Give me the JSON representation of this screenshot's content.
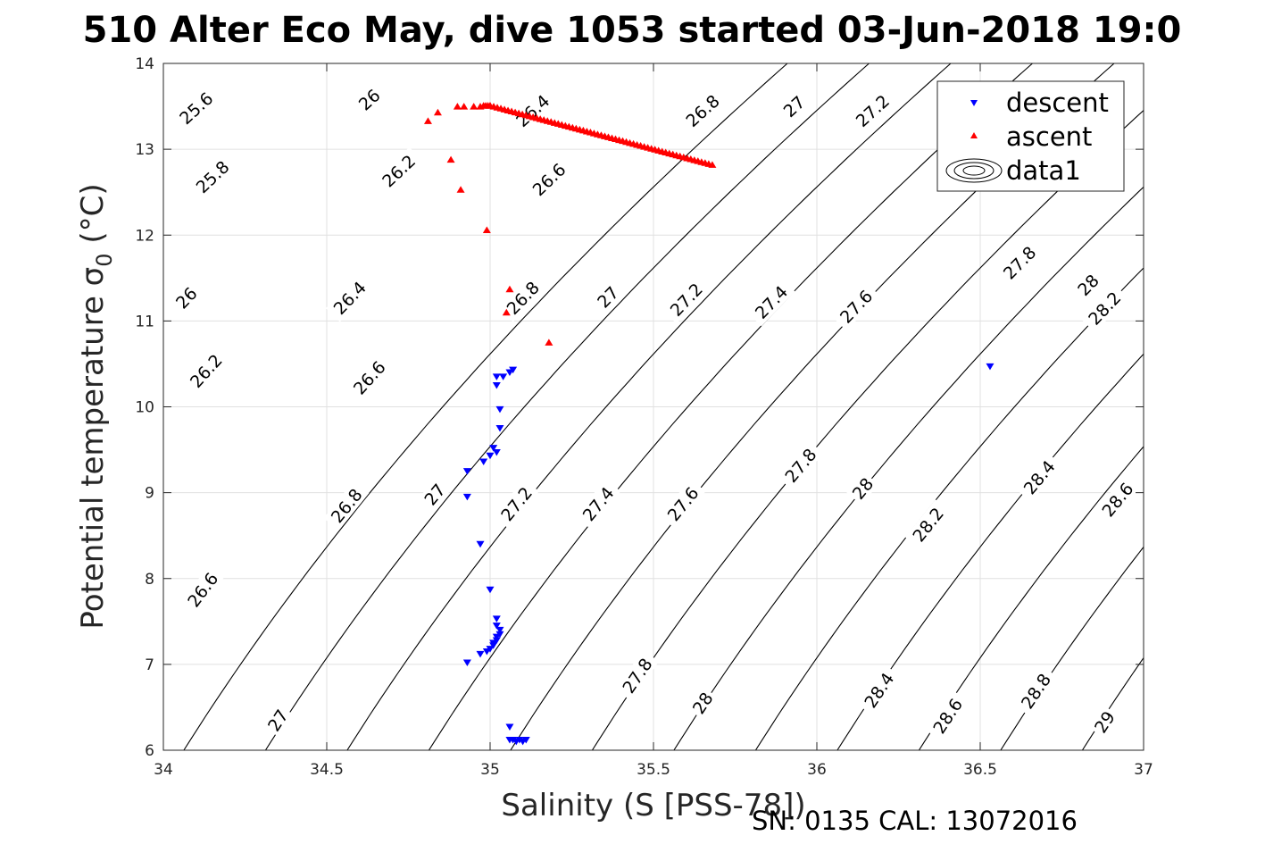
{
  "chart_data": {
    "type": "scatter",
    "title": "510 Alter Eco May, dive 1053 started 03-Jun-2018 19:0",
    "xlabel": "Salinity (S [PSS-78])",
    "ylabel": "Potential temperature σ",
    "ylabel_sub": "0",
    "ylabel_unit": " (°C)",
    "xlim": [
      34,
      37
    ],
    "ylim": [
      6,
      14
    ],
    "xticks": [
      34,
      34.5,
      35,
      35.5,
      36,
      36.5,
      37
    ],
    "xtick_labels": [
      "34",
      "34.5",
      "35",
      "35.5",
      "36",
      "36.5",
      "37"
    ],
    "yticks": [
      6,
      7,
      8,
      9,
      10,
      11,
      12,
      13,
      14
    ],
    "ytick_labels": [
      "6",
      "7",
      "8",
      "9",
      "10",
      "11",
      "12",
      "13",
      "14"
    ],
    "grid": true,
    "legend_position": "top-right",
    "footer": "SN: 0135  CAL: 13072016",
    "colors": {
      "descent": "#0000ff",
      "ascent": "#ff0000",
      "contour": "#000000",
      "grid": "#e0e0e0"
    },
    "series": [
      {
        "name": "descent",
        "marker": "triangle-down",
        "x": [
          35.02,
          35.04,
          35.06,
          35.07,
          35.02,
          35.03,
          35.03,
          35.01,
          35.02,
          35.0,
          34.98,
          34.93,
          34.93,
          34.97,
          35.0,
          35.02,
          35.02,
          35.03,
          35.03,
          35.02,
          35.02,
          35.01,
          35.01,
          35.0,
          34.99,
          34.97,
          34.93,
          35.06,
          35.06,
          35.07,
          35.08,
          35.09,
          35.1,
          35.11
        ],
        "y": [
          10.35,
          10.35,
          10.4,
          10.43,
          10.25,
          9.97,
          9.75,
          9.52,
          9.47,
          9.43,
          9.36,
          9.25,
          8.95,
          8.4,
          7.87,
          7.53,
          7.45,
          7.4,
          7.35,
          7.32,
          7.28,
          7.25,
          7.22,
          7.18,
          7.15,
          7.12,
          7.02,
          6.27,
          6.12,
          6.12,
          6.1,
          6.12,
          6.1,
          6.12
        ]
      },
      {
        "name": "descent",
        "marker": "triangle-down",
        "x": [
          36.53
        ],
        "y": [
          10.47
        ]
      },
      {
        "name": "ascent",
        "marker": "triangle-up",
        "scatter_x": [
          34.81,
          34.84,
          34.88,
          34.9,
          34.92,
          34.95,
          34.97,
          34.91,
          34.99,
          35.06,
          35.05,
          35.18
        ],
        "scatter_y": [
          13.33,
          13.43,
          12.88,
          13.5,
          13.5,
          13.5,
          13.5,
          12.53,
          12.06,
          11.37,
          11.1,
          10.75
        ],
        "x": [
          34.98,
          35.0,
          35.68
        ],
        "y": [
          13.51,
          13.51,
          12.82
        ]
      },
      {
        "name": "data1",
        "marker": "contour"
      }
    ],
    "contours": {
      "levels": [
        25.6,
        25.8,
        26,
        26.2,
        26.4,
        26.6,
        26.8,
        27,
        27.2,
        27.4,
        27.6,
        27.8,
        28,
        28.2,
        28.4,
        28.6,
        28.8,
        29
      ],
      "level_labels": [
        "25.6",
        "25.8",
        "26",
        "26.2",
        "26.4",
        "26.6",
        "26.8",
        "27",
        "27.2",
        "27.4",
        "27.6",
        "27.8",
        "28",
        "28.2",
        "28.4",
        "28.6",
        "28.8",
        "29"
      ],
      "label_points": [
        {
          "text": "25.6",
          "s": 34.1,
          "t": 13.48
        },
        {
          "text": "26",
          "s": 34.63,
          "t": 13.58
        },
        {
          "text": "26.4",
          "s": 35.13,
          "t": 13.45
        },
        {
          "text": "26.8",
          "s": 35.65,
          "t": 13.45
        },
        {
          "text": "27",
          "s": 35.93,
          "t": 13.5
        },
        {
          "text": "27.2",
          "s": 36.17,
          "t": 13.45
        },
        {
          "text": "25.8",
          "s": 34.15,
          "t": 12.68
        },
        {
          "text": "26.2",
          "s": 34.72,
          "t": 12.75
        },
        {
          "text": "26.6",
          "s": 35.18,
          "t": 12.65
        },
        {
          "text": "26",
          "s": 34.07,
          "t": 11.27
        },
        {
          "text": "26.4",
          "s": 34.57,
          "t": 11.27
        },
        {
          "text": "26.8",
          "s": 35.1,
          "t": 11.27
        },
        {
          "text": "27",
          "s": 35.36,
          "t": 11.28
        },
        {
          "text": "27.2",
          "s": 35.6,
          "t": 11.25
        },
        {
          "text": "27.4",
          "s": 35.86,
          "t": 11.22
        },
        {
          "text": "27.6",
          "s": 36.12,
          "t": 11.17
        },
        {
          "text": "27.8",
          "s": 36.62,
          "t": 11.68
        },
        {
          "text": "28",
          "s": 36.83,
          "t": 11.42
        },
        {
          "text": "28.2",
          "s": 36.88,
          "t": 11.15
        },
        {
          "text": "26.2",
          "s": 34.13,
          "t": 10.42
        },
        {
          "text": "26.6",
          "s": 34.63,
          "t": 10.34
        },
        {
          "text": "27",
          "s": 34.83,
          "t": 8.98
        },
        {
          "text": "27.2",
          "s": 35.08,
          "t": 8.87
        },
        {
          "text": "27.4",
          "s": 35.33,
          "t": 8.87
        },
        {
          "text": "27.6",
          "s": 35.59,
          "t": 8.87
        },
        {
          "text": "27.8",
          "s": 35.95,
          "t": 9.32
        },
        {
          "text": "28",
          "s": 36.14,
          "t": 9.05
        },
        {
          "text": "28.2",
          "s": 36.34,
          "t": 8.63
        },
        {
          "text": "28.4",
          "s": 36.68,
          "t": 9.18
        },
        {
          "text": "28.6",
          "s": 36.92,
          "t": 8.92
        },
        {
          "text": "26.8",
          "s": 34.56,
          "t": 8.85
        },
        {
          "text": "26.6",
          "s": 34.12,
          "t": 7.87
        },
        {
          "text": "27",
          "s": 34.35,
          "t": 6.35
        },
        {
          "text": "27.8",
          "s": 35.45,
          "t": 6.87
        },
        {
          "text": "28",
          "s": 35.65,
          "t": 6.55
        },
        {
          "text": "28.4",
          "s": 36.19,
          "t": 6.7
        },
        {
          "text": "28.6",
          "s": 36.4,
          "t": 6.4
        },
        {
          "text": "28.8",
          "s": 36.67,
          "t": 6.69
        },
        {
          "text": "29",
          "s": 36.88,
          "t": 6.33
        }
      ]
    }
  }
}
